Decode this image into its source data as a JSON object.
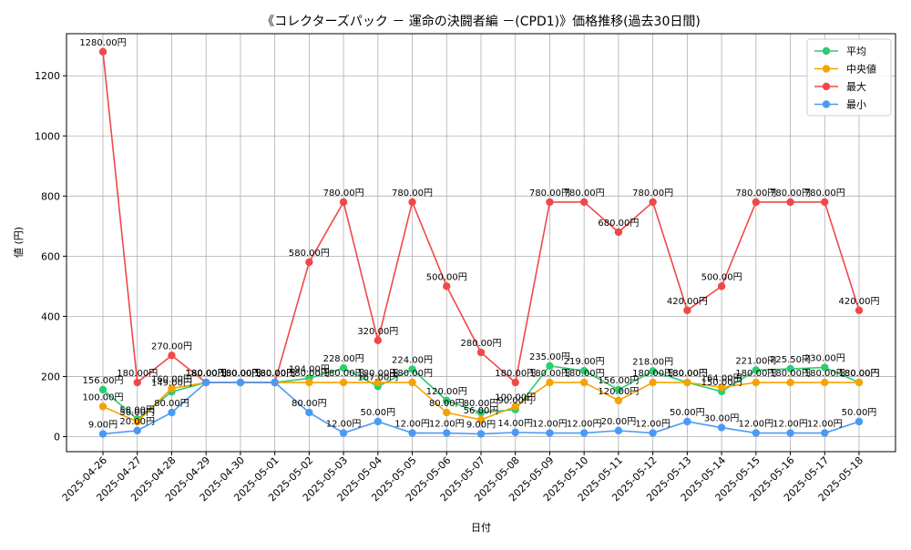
{
  "chart_data": {
    "type": "line",
    "title": "《コレクターズパック － 運命の決闘者編 －(CPD1)》価格推移(過去30日間)",
    "xlabel": "日付",
    "ylabel": "値 (円)",
    "ylim": [
      -50,
      1340
    ],
    "yticks": [
      0,
      200,
      400,
      600,
      800,
      1000,
      1200
    ],
    "grid": true,
    "legend_position": "top-right",
    "categories": [
      "2025-04-26",
      "2025-04-27",
      "2025-04-28",
      "2025-04-29",
      "2025-04-30",
      "2025-05-01",
      "2025-05-02",
      "2025-05-03",
      "2025-05-04",
      "2025-05-05",
      "2025-05-06",
      "2025-05-07",
      "2025-05-08",
      "2025-05-09",
      "2025-05-10",
      "2025-05-11",
      "2025-05-12",
      "2025-05-13",
      "2025-05-14",
      "2025-05-15",
      "2025-05-16",
      "2025-05-17",
      "2025-05-18"
    ],
    "label_suffix": "円",
    "series": [
      {
        "name": "平均",
        "color": "#2ecc71",
        "values": [
          156,
          58,
          149,
          180,
          180,
          180,
          194,
          228,
          167,
          224,
          120,
          80,
          90,
          235,
          219,
          156,
          218,
          180,
          150,
          221,
          225.5,
          230,
          180
        ]
      },
      {
        "name": " 中央値",
        "color": "#f5a300",
        "values": [
          100,
          50,
          160,
          180,
          180,
          180,
          180,
          180,
          180,
          180,
          80,
          56,
          100,
          180,
          180,
          120,
          180,
          180,
          164,
          180,
          180,
          180,
          180
        ]
      },
      {
        "name": "最大",
        "color": "#f04848",
        "values": [
          1280,
          180,
          270,
          180,
          180,
          180,
          580,
          780,
          320,
          780,
          500,
          280,
          180,
          780,
          780,
          680,
          780,
          420,
          500,
          780,
          780,
          780,
          420
        ]
      },
      {
        "name": "最小",
        "color": "#4a9af5",
        "values": [
          9,
          20,
          80,
          180,
          180,
          180,
          80,
          12,
          50,
          12,
          12,
          9,
          14,
          12,
          12,
          20,
          12,
          50,
          30,
          12,
          12,
          12,
          50
        ]
      }
    ]
  }
}
